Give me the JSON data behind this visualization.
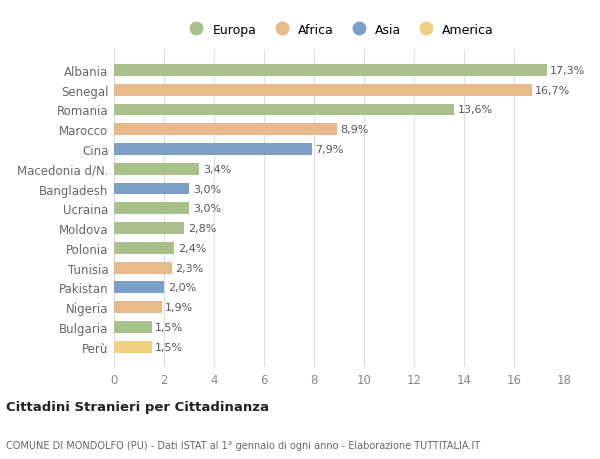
{
  "categories": [
    "Albania",
    "Senegal",
    "Romania",
    "Marocco",
    "Cina",
    "Macedonia d/N.",
    "Bangladesh",
    "Ucraina",
    "Moldova",
    "Polonia",
    "Tunisia",
    "Pakistan",
    "Nigeria",
    "Bulgaria",
    "Perù"
  ],
  "values": [
    17.3,
    16.7,
    13.6,
    8.9,
    7.9,
    3.4,
    3.0,
    3.0,
    2.8,
    2.4,
    2.3,
    2.0,
    1.9,
    1.5,
    1.5
  ],
  "labels": [
    "17,3%",
    "16,7%",
    "13,6%",
    "8,9%",
    "7,9%",
    "3,4%",
    "3,0%",
    "3,0%",
    "2,8%",
    "2,4%",
    "2,3%",
    "2,0%",
    "1,9%",
    "1,5%",
    "1,5%"
  ],
  "continents": [
    "Europa",
    "Africa",
    "Europa",
    "Africa",
    "Asia",
    "Europa",
    "Asia",
    "Europa",
    "Europa",
    "Europa",
    "Africa",
    "Asia",
    "Africa",
    "Europa",
    "America"
  ],
  "colors": {
    "Europa": "#a8c08a",
    "Africa": "#e8b98a",
    "Asia": "#7b9fc7",
    "America": "#f0d080"
  },
  "legend_order": [
    "Europa",
    "Africa",
    "Asia",
    "America"
  ],
  "xlim": [
    0,
    18
  ],
  "xticks": [
    0,
    2,
    4,
    6,
    8,
    10,
    12,
    14,
    16,
    18
  ],
  "title1": "Cittadini Stranieri per Cittadinanza",
  "title2": "COMUNE DI MONDOLFO (PU) - Dati ISTAT al 1° gennaio di ogni anno - Elaborazione TUTTITALIA.IT",
  "background_color": "#ffffff",
  "grid_color": "#dddddd"
}
